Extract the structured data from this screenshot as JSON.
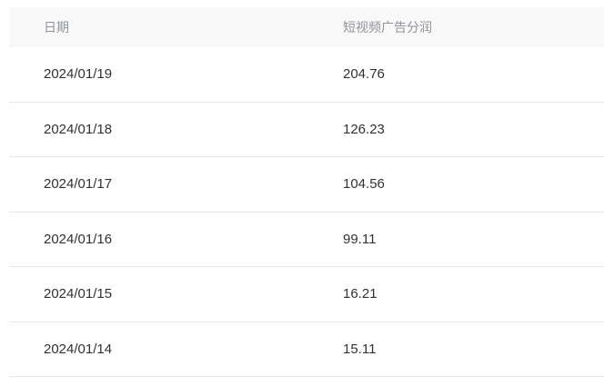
{
  "table": {
    "columns": [
      {
        "key": "date",
        "label": "日期"
      },
      {
        "key": "profit",
        "label": "短视频广告分润"
      }
    ],
    "rows": [
      {
        "date": "2024/01/19",
        "profit": "204.76"
      },
      {
        "date": "2024/01/18",
        "profit": "126.23"
      },
      {
        "date": "2024/01/17",
        "profit": "104.56"
      },
      {
        "date": "2024/01/16",
        "profit": "99.11"
      },
      {
        "date": "2024/01/15",
        "profit": "16.21"
      },
      {
        "date": "2024/01/14",
        "profit": "15.11"
      }
    ],
    "colors": {
      "header_bg": "#f8f8f9",
      "header_text": "#909399",
      "body_text": "#303133",
      "divider": "#e8e8ea"
    }
  }
}
